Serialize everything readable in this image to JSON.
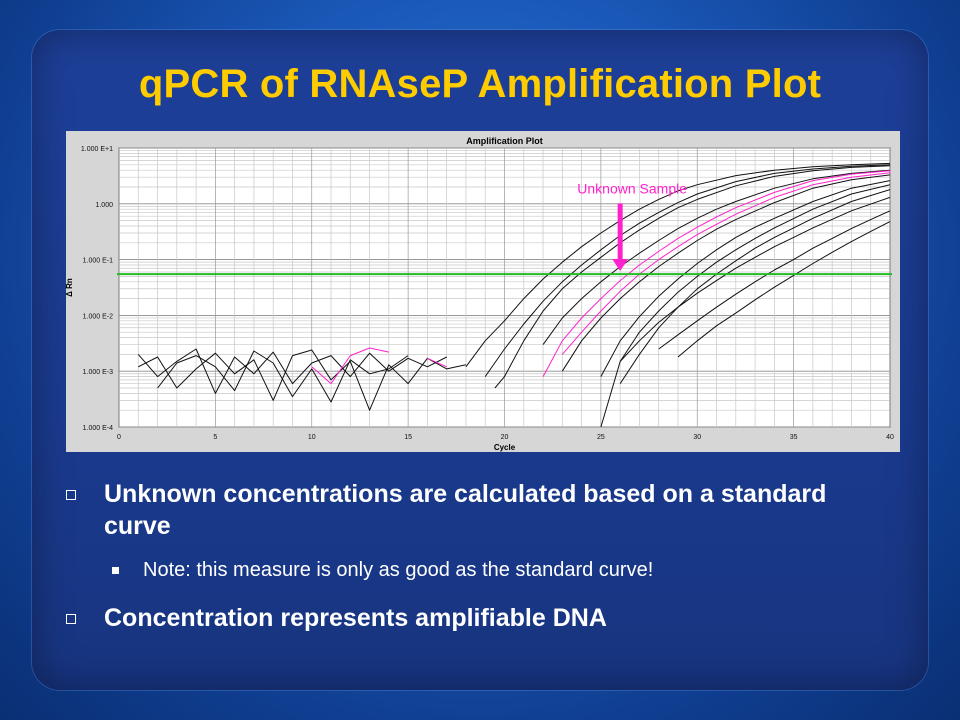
{
  "slide": {
    "title": "qPCR of RNAseP Amplification Plot",
    "bullets": [
      "Unknown concentrations are calculated based on a standard curve",
      "Note: this measure is only as good as the standard curve!",
      "Concentration represents amplifiable DNA"
    ]
  },
  "colors": {
    "title": "#ffcc00",
    "background": "#1a3a8e",
    "threshold": "#22bb22",
    "highlight": "#ff22cc",
    "curve": "#111111"
  },
  "chart_data": {
    "type": "line",
    "title": "Amplification Plot",
    "xlabel": "Cycle",
    "ylabel": "Δ Rn",
    "yscale": "log",
    "xlim": [
      0,
      40
    ],
    "ylim": [
      0.0001,
      10
    ],
    "x_ticks": [
      0,
      5,
      10,
      15,
      20,
      25,
      30,
      35,
      40
    ],
    "y_ticks": [
      {
        "value": 10,
        "label": "1.000 E+1"
      },
      {
        "value": 1,
        "label": "1.000"
      },
      {
        "value": 0.1,
        "label": "1.000 E-1"
      },
      {
        "value": 0.01,
        "label": "1.000 E-2"
      },
      {
        "value": 0.001,
        "label": "1.000 E-3"
      },
      {
        "value": 0.0001,
        "label": "1.000 E-4"
      }
    ],
    "grid": true,
    "threshold": 0.055,
    "annotation": {
      "text": "Unknown Sample",
      "arrow_x": 26,
      "arrow_y_from": 0.9,
      "arrow_y_to": 0.06
    },
    "series": [
      {
        "color": "#111111",
        "x": [
          18,
          19,
          20,
          21,
          22,
          23,
          24,
          25,
          26,
          27,
          28,
          29,
          30,
          32,
          34,
          36,
          38,
          40
        ],
        "y": [
          0.0012,
          0.0035,
          0.008,
          0.02,
          0.045,
          0.09,
          0.17,
          0.3,
          0.5,
          0.8,
          1.2,
          1.7,
          2.2,
          3.2,
          4.0,
          4.6,
          5.0,
          5.3
        ]
      },
      {
        "color": "#111111",
        "x": [
          19,
          20,
          21,
          22,
          23,
          24,
          25,
          26,
          27,
          28,
          29,
          30,
          32,
          34,
          36,
          38,
          40
        ],
        "y": [
          0.0008,
          0.0025,
          0.007,
          0.018,
          0.04,
          0.08,
          0.15,
          0.27,
          0.45,
          0.7,
          1.05,
          1.5,
          2.5,
          3.5,
          4.2,
          4.7,
          5.0
        ]
      },
      {
        "color": "#111111",
        "x": [
          19.5,
          20,
          21,
          22,
          23,
          24,
          25,
          26,
          27,
          28,
          29,
          30,
          32,
          34,
          36,
          38,
          40
        ],
        "y": [
          0.0005,
          0.0008,
          0.0035,
          0.012,
          0.03,
          0.06,
          0.11,
          0.2,
          0.34,
          0.55,
          0.85,
          1.2,
          2.1,
          3.1,
          3.9,
          4.5,
          4.8
        ]
      },
      {
        "color": "#111111",
        "x": [
          22,
          23,
          24,
          25,
          26,
          27,
          28,
          29,
          30,
          31,
          32,
          34,
          36,
          38,
          40
        ],
        "y": [
          0.003,
          0.009,
          0.02,
          0.04,
          0.075,
          0.13,
          0.22,
          0.36,
          0.55,
          0.8,
          1.1,
          1.9,
          2.8,
          3.5,
          4.0
        ]
      },
      {
        "color": "#ff22cc",
        "x": [
          22,
          23,
          24,
          25,
          26,
          27,
          28,
          29,
          30,
          31,
          32,
          34,
          36,
          38,
          40
        ],
        "y": [
          0.0008,
          0.0035,
          0.009,
          0.02,
          0.042,
          0.08,
          0.14,
          0.24,
          0.38,
          0.58,
          0.85,
          1.6,
          2.6,
          3.4,
          3.9
        ]
      },
      {
        "color": "#ff22cc",
        "x": [
          23,
          24,
          25,
          26,
          27,
          28,
          29,
          30,
          31,
          32,
          34,
          36,
          38,
          40
        ],
        "y": [
          0.002,
          0.005,
          0.012,
          0.027,
          0.055,
          0.1,
          0.17,
          0.28,
          0.43,
          0.65,
          1.3,
          2.2,
          3.0,
          3.6
        ]
      },
      {
        "color": "#111111",
        "x": [
          23,
          24,
          25,
          26,
          27,
          28,
          29,
          30,
          31,
          32,
          34,
          36,
          38,
          40
        ],
        "y": [
          0.001,
          0.0035,
          0.009,
          0.02,
          0.04,
          0.075,
          0.13,
          0.22,
          0.35,
          0.52,
          1.05,
          1.9,
          2.7,
          3.3
        ]
      },
      {
        "color": "#111111",
        "x": [
          25,
          26,
          27,
          28,
          29,
          30,
          31,
          32,
          33,
          34,
          36,
          38,
          40
        ],
        "y": [
          0.0008,
          0.0035,
          0.0095,
          0.022,
          0.045,
          0.085,
          0.15,
          0.25,
          0.38,
          0.55,
          1.1,
          1.9,
          2.6
        ]
      },
      {
        "color": "#111111",
        "x": [
          25,
          26,
          27,
          28,
          29,
          30,
          31,
          32,
          33,
          34,
          36,
          38,
          40
        ],
        "y": [
          0.0001,
          0.0015,
          0.005,
          0.012,
          0.026,
          0.05,
          0.09,
          0.15,
          0.24,
          0.37,
          0.8,
          1.5,
          2.2
        ]
      },
      {
        "color": "#111111",
        "x": [
          26,
          27,
          28,
          29,
          30,
          31,
          32,
          33,
          34,
          35,
          36,
          38,
          40
        ],
        "y": [
          0.0006,
          0.002,
          0.006,
          0.014,
          0.03,
          0.055,
          0.095,
          0.16,
          0.25,
          0.37,
          0.55,
          1.1,
          1.8
        ]
      },
      {
        "color": "#111111",
        "x": [
          26,
          27,
          28,
          29,
          30,
          31,
          32,
          33,
          34,
          35,
          36,
          38,
          40
        ],
        "y": [
          0.0015,
          0.0035,
          0.0075,
          0.014,
          0.025,
          0.042,
          0.07,
          0.11,
          0.17,
          0.25,
          0.37,
          0.75,
          1.3
        ]
      },
      {
        "color": "#111111",
        "x": [
          28,
          29,
          30,
          31,
          32,
          33,
          34,
          35,
          36,
          37,
          38,
          39,
          40
        ],
        "y": [
          0.0025,
          0.0045,
          0.008,
          0.014,
          0.024,
          0.04,
          0.065,
          0.1,
          0.16,
          0.24,
          0.36,
          0.52,
          0.75
        ]
      },
      {
        "color": "#111111",
        "x": [
          29,
          30,
          31,
          32,
          33,
          34,
          35,
          36,
          37,
          38,
          39,
          40
        ],
        "y": [
          0.0018,
          0.0035,
          0.0065,
          0.011,
          0.019,
          0.032,
          0.052,
          0.085,
          0.135,
          0.21,
          0.32,
          0.48
        ]
      },
      {
        "color": "#111111",
        "x": [
          1,
          2,
          3,
          4,
          5,
          6,
          7,
          8,
          9,
          10,
          11,
          12,
          13,
          14,
          15,
          16,
          17
        ],
        "y": [
          0.002,
          0.0008,
          0.0015,
          0.0025,
          0.0004,
          0.0018,
          0.0009,
          0.0022,
          0.0006,
          0.0014,
          0.0019,
          0.0008,
          0.0021,
          0.001,
          0.0017,
          0.0012,
          0.0018
        ]
      },
      {
        "color": "#111111",
        "x": [
          1,
          2,
          3,
          4,
          5,
          6,
          7,
          8,
          9,
          10,
          11,
          12,
          13,
          14,
          15,
          16,
          17,
          18
        ],
        "y": [
          0.0012,
          0.0018,
          0.0005,
          0.0011,
          0.0021,
          0.0009,
          0.0016,
          0.0003,
          0.0019,
          0.0024,
          0.0007,
          0.0015,
          0.0002,
          0.0013,
          0.0006,
          0.0017,
          0.0011,
          0.0013
        ]
      },
      {
        "color": "#111111",
        "x": [
          2,
          3,
          4,
          5,
          6,
          7,
          8,
          9,
          10,
          11,
          12,
          13,
          14,
          15
        ],
        "y": [
          0.0005,
          0.0014,
          0.0019,
          0.0012,
          0.00045,
          0.0023,
          0.0014,
          0.00035,
          0.0011,
          0.00028,
          0.0016,
          0.0009,
          0.0011,
          0.0019
        ]
      },
      {
        "color": "#ff22cc",
        "x": [
          10,
          11,
          12,
          13,
          14
        ],
        "y": [
          0.0012,
          0.0006,
          0.0019,
          0.0026,
          0.0022
        ]
      },
      {
        "color": "#ff22cc",
        "x": [
          16,
          17
        ],
        "y": [
          0.0017,
          0.0012
        ]
      }
    ]
  }
}
